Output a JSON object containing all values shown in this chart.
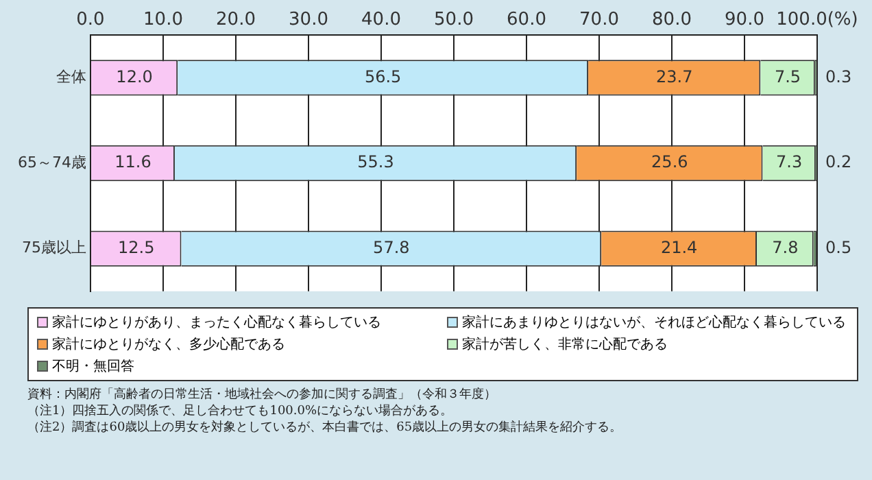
{
  "chart_data": {
    "type": "bar",
    "orientation": "horizontal",
    "stacked": true,
    "categories": [
      "全体",
      "65～74歳",
      "75歳以上"
    ],
    "series": [
      {
        "name": "家計にゆとりがあり、まったく心配なく暮らしている",
        "color": "#f9c8f4",
        "values": [
          12.0,
          11.6,
          12.5
        ],
        "value_labels": [
          "12.0",
          "11.6",
          "12.5"
        ]
      },
      {
        "name": "家計にあまりゆとりはないが、それほど心配なく暮らしている",
        "color": "#bfe9f9",
        "values": [
          56.5,
          55.3,
          57.8
        ],
        "value_labels": [
          "56.5",
          "55.3",
          "57.8"
        ]
      },
      {
        "name": "家計にゆとりがなく、多少心配である",
        "color": "#f7a04e",
        "values": [
          23.7,
          25.6,
          21.4
        ],
        "value_labels": [
          "23.7",
          "25.6",
          "21.4"
        ]
      },
      {
        "name": "家計が苦しく、非常に心配である",
        "color": "#c6f2c6",
        "values": [
          7.5,
          7.3,
          7.8
        ],
        "value_labels": [
          "7.5",
          "7.3",
          "7.8"
        ]
      },
      {
        "name": "不明・無回答",
        "color": "#6f8f6f",
        "values": [
          0.3,
          0.2,
          0.5
        ],
        "value_labels": [
          "0.3",
          "0.2",
          "0.5"
        ]
      }
    ],
    "xlim": [
      0,
      100
    ],
    "xticks": [
      {
        "value": 0,
        "label": "0.0"
      },
      {
        "value": 10,
        "label": "10.0"
      },
      {
        "value": 20,
        "label": "20.0"
      },
      {
        "value": 30,
        "label": "30.0"
      },
      {
        "value": 40,
        "label": "40.0"
      },
      {
        "value": 50,
        "label": "50.0"
      },
      {
        "value": 60,
        "label": "60.0"
      },
      {
        "value": 70,
        "label": "70.0"
      },
      {
        "value": 80,
        "label": "80.0"
      },
      {
        "value": 90,
        "label": "90.0"
      },
      {
        "value": 100,
        "label": "100.0(%)"
      }
    ],
    "grid": "x",
    "legend": "bottom",
    "annotations": [
      "資料：内閣府「高齢者の日常生活・地域社会への参加に関する調査」（令和３年度）",
      "（注1）四捨五入の関係で、足し合わせても100.0%にならない場合がある。",
      "（注2）調査は60歳以上の男女を対象としているが、本白書では、65歳以上の男女の集計結果を紹介する。"
    ]
  }
}
